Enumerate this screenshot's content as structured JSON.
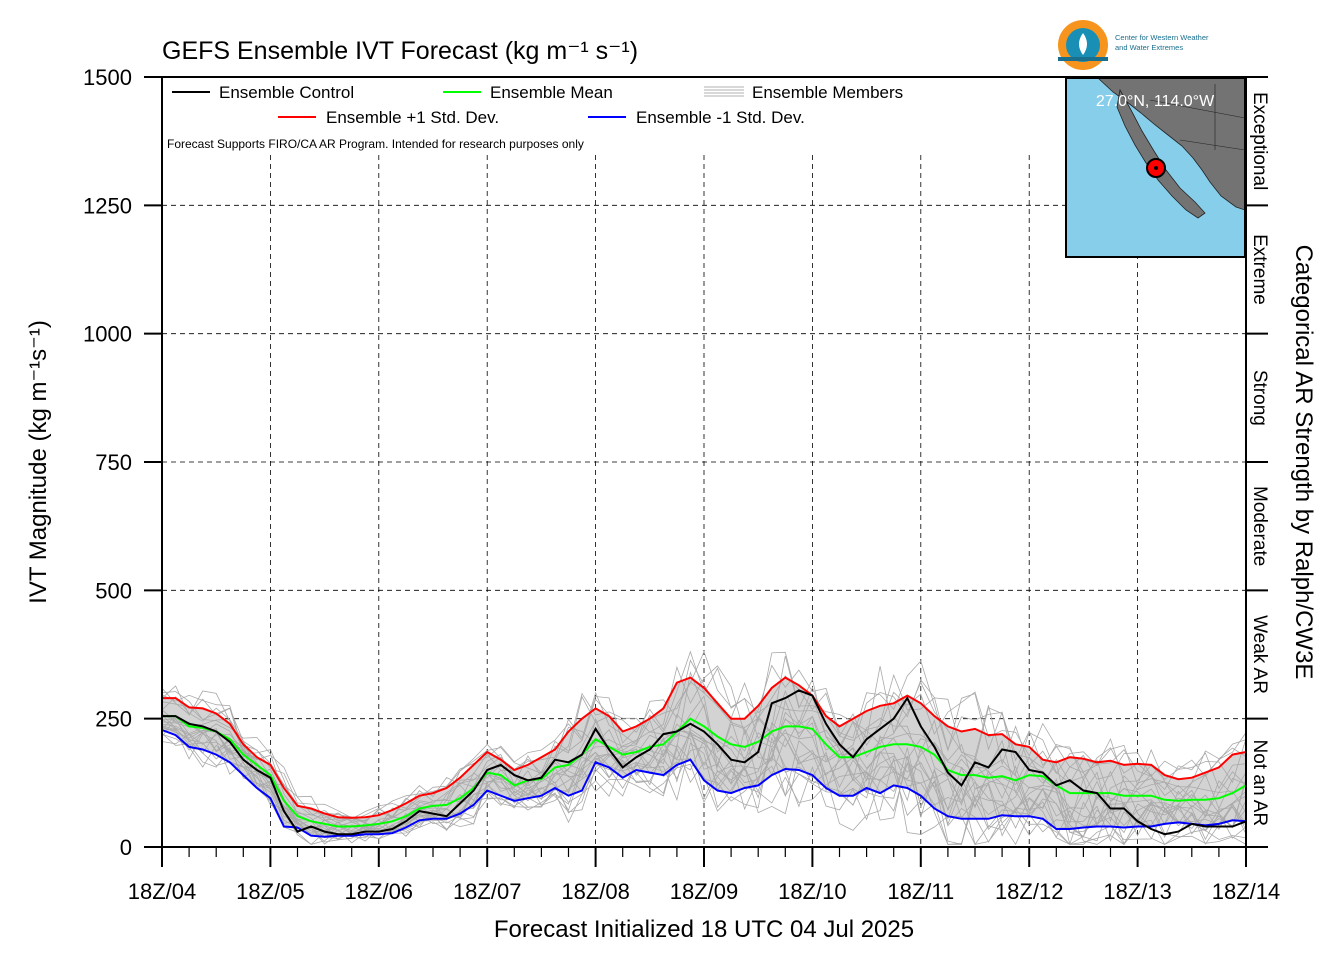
{
  "chart_data": {
    "type": "line",
    "title": "GEFS Ensemble IVT Forecast (kg m⁻¹ s⁻¹)",
    "xlabel": "Forecast Initialized 18 UTC 04 Jul 2025",
    "ylabel": "IVT Magnitude (kg m⁻¹s⁻¹)",
    "right_axis_label": "Categorical AR Strength by Ralph/CW3E",
    "ylim": [
      0,
      1500
    ],
    "xlim": [
      0,
      10
    ],
    "y_ticks": [
      0,
      250,
      500,
      750,
      1000,
      1250,
      1500
    ],
    "x_tick_labels": [
      "18Z/04",
      "18Z/05",
      "18Z/06",
      "18Z/07",
      "18Z/08",
      "18Z/09",
      "18Z/10",
      "18Z/11",
      "18Z/12",
      "18Z/13",
      "18Z/14"
    ],
    "x_unit": "days after 18Z/04",
    "categories_right": [
      {
        "label": "Not an AR",
        "from": 0,
        "to": 250
      },
      {
        "label": "Weak AR",
        "from": 250,
        "to": 500
      },
      {
        "label": "Moderate",
        "from": 500,
        "to": 750
      },
      {
        "label": "Strong",
        "from": 750,
        "to": 1000
      },
      {
        "label": "Extreme",
        "from": 1000,
        "to": 1250
      },
      {
        "label": "Exceptional",
        "from": 1250,
        "to": 1500
      }
    ],
    "note": "Forecast Supports FIRO/CA AR Program. Intended for research purposes only",
    "grid": true,
    "legend_position": "top-left",
    "legend": [
      "Ensemble Control",
      "Ensemble Mean",
      "Ensemble Members",
      "Ensemble +1 Std. Dev.",
      "Ensemble -1 Std. Dev."
    ],
    "series": [
      {
        "name": "Ensemble Control",
        "color": "#000000",
        "x": [
          0,
          0.125,
          0.25,
          0.375,
          0.5,
          0.625,
          0.75,
          0.875,
          1,
          1.125,
          1.25,
          1.375,
          1.5,
          1.625,
          1.75,
          1.875,
          2,
          2.125,
          2.25,
          2.375,
          2.5,
          2.625,
          2.75,
          2.875,
          3,
          3.125,
          3.25,
          3.375,
          3.5,
          3.625,
          3.75,
          3.875,
          4,
          4.125,
          4.25,
          4.375,
          4.5,
          4.625,
          4.75,
          4.875,
          5,
          5.125,
          5.25,
          5.375,
          5.5,
          5.625,
          5.75,
          5.875,
          6,
          6.125,
          6.25,
          6.375,
          6.5,
          6.625,
          6.75,
          6.875,
          7,
          7.125,
          7.25,
          7.375,
          7.5,
          7.625,
          7.75,
          7.875,
          8,
          8.125,
          8.25,
          8.375,
          8.5,
          8.625,
          8.75,
          8.875,
          9,
          9.125,
          9.25,
          9.375,
          9.5,
          9.625,
          9.75,
          9.875,
          10
        ],
        "values": [
          255,
          255,
          240,
          235,
          225,
          205,
          170,
          150,
          135,
          70,
          30,
          40,
          30,
          25,
          25,
          30,
          30,
          35,
          50,
          70,
          65,
          60,
          85,
          110,
          150,
          160,
          140,
          130,
          135,
          170,
          165,
          180,
          230,
          190,
          155,
          175,
          190,
          220,
          225,
          240,
          225,
          200,
          170,
          165,
          185,
          280,
          290,
          305,
          295,
          240,
          200,
          175,
          210,
          230,
          250,
          290,
          235,
          195,
          145,
          120,
          165,
          155,
          190,
          185,
          150,
          145,
          120,
          130,
          110,
          105,
          75,
          75,
          50,
          35,
          25,
          30,
          45,
          40,
          40,
          40,
          50
        ]
      },
      {
        "name": "Ensemble Mean",
        "color": "#00ff00",
        "x": [
          0,
          0.125,
          0.25,
          0.375,
          0.5,
          0.625,
          0.75,
          0.875,
          1,
          1.125,
          1.25,
          1.375,
          1.5,
          1.625,
          1.75,
          1.875,
          2,
          2.125,
          2.25,
          2.375,
          2.5,
          2.625,
          2.75,
          2.875,
          3,
          3.125,
          3.25,
          3.375,
          3.5,
          3.625,
          3.75,
          3.875,
          4,
          4.125,
          4.25,
          4.375,
          4.5,
          4.625,
          4.75,
          4.875,
          5,
          5.125,
          5.25,
          5.375,
          5.5,
          5.625,
          5.75,
          5.875,
          6,
          6.125,
          6.25,
          6.375,
          6.5,
          6.625,
          6.75,
          6.875,
          7,
          7.125,
          7.25,
          7.375,
          7.5,
          7.625,
          7.75,
          7.875,
          8,
          8.125,
          8.25,
          8.375,
          8.5,
          8.625,
          8.75,
          8.875,
          9,
          9.125,
          9.25,
          9.375,
          9.5,
          9.625,
          9.75,
          9.875,
          10
        ],
        "values": [
          255,
          255,
          235,
          232,
          225,
          210,
          180,
          160,
          140,
          90,
          60,
          50,
          45,
          40,
          40,
          42,
          45,
          50,
          60,
          75,
          80,
          82,
          95,
          115,
          145,
          140,
          120,
          130,
          132,
          155,
          160,
          180,
          210,
          195,
          180,
          185,
          195,
          200,
          225,
          250,
          235,
          215,
          200,
          195,
          205,
          225,
          235,
          235,
          230,
          200,
          175,
          175,
          185,
          195,
          200,
          200,
          195,
          180,
          150,
          140,
          140,
          135,
          138,
          130,
          140,
          138,
          120,
          105,
          105,
          105,
          105,
          100,
          100,
          100,
          92,
          90,
          92,
          92,
          95,
          105,
          120
        ]
      },
      {
        "name": "Ensemble +1 Std. Dev.",
        "color": "#ff0000",
        "x": [
          0,
          0.125,
          0.25,
          0.375,
          0.5,
          0.625,
          0.75,
          0.875,
          1,
          1.125,
          1.25,
          1.375,
          1.5,
          1.625,
          1.75,
          1.875,
          2,
          2.125,
          2.25,
          2.375,
          2.5,
          2.625,
          2.75,
          2.875,
          3,
          3.125,
          3.25,
          3.375,
          3.5,
          3.625,
          3.75,
          3.875,
          4,
          4.125,
          4.25,
          4.375,
          4.5,
          4.625,
          4.75,
          4.875,
          5,
          5.125,
          5.25,
          5.375,
          5.5,
          5.625,
          5.75,
          5.875,
          6,
          6.125,
          6.25,
          6.375,
          6.5,
          6.625,
          6.75,
          6.875,
          7,
          7.125,
          7.25,
          7.375,
          7.5,
          7.625,
          7.75,
          7.875,
          8,
          8.125,
          8.25,
          8.375,
          8.5,
          8.625,
          8.75,
          8.875,
          9,
          9.125,
          9.25,
          9.375,
          9.5,
          9.625,
          9.75,
          9.875,
          10
        ],
        "values": [
          290,
          290,
          272,
          270,
          260,
          240,
          200,
          175,
          160,
          115,
          80,
          75,
          65,
          58,
          57,
          58,
          62,
          72,
          85,
          100,
          105,
          115,
          135,
          160,
          185,
          170,
          150,
          160,
          175,
          190,
          225,
          250,
          270,
          255,
          225,
          235,
          250,
          270,
          320,
          330,
          310,
          280,
          250,
          250,
          275,
          310,
          330,
          315,
          295,
          255,
          235,
          250,
          265,
          275,
          280,
          295,
          280,
          255,
          235,
          225,
          230,
          218,
          220,
          200,
          195,
          170,
          165,
          175,
          172,
          165,
          168,
          160,
          162,
          160,
          140,
          132,
          135,
          145,
          155,
          180,
          185
        ]
      },
      {
        "name": "Ensemble -1 Std. Dev.",
        "color": "#0000ff",
        "x": [
          0,
          0.125,
          0.25,
          0.375,
          0.5,
          0.625,
          0.75,
          0.875,
          1,
          1.125,
          1.25,
          1.375,
          1.5,
          1.625,
          1.75,
          1.875,
          2,
          2.125,
          2.25,
          2.375,
          2.5,
          2.625,
          2.75,
          2.875,
          3,
          3.125,
          3.25,
          3.375,
          3.5,
          3.625,
          3.75,
          3.875,
          4,
          4.125,
          4.25,
          4.375,
          4.5,
          4.625,
          4.75,
          4.875,
          5,
          5.125,
          5.25,
          5.375,
          5.5,
          5.625,
          5.75,
          5.875,
          6,
          6.125,
          6.25,
          6.375,
          6.5,
          6.625,
          6.75,
          6.875,
          7,
          7.125,
          7.25,
          7.375,
          7.5,
          7.625,
          7.75,
          7.875,
          8,
          8.125,
          8.25,
          8.375,
          8.5,
          8.625,
          8.75,
          8.875,
          9,
          9.125,
          9.25,
          9.375,
          9.5,
          9.625,
          9.75,
          9.875,
          10
        ],
        "values": [
          228,
          218,
          195,
          190,
          180,
          165,
          140,
          115,
          95,
          40,
          38,
          22,
          20,
          22,
          22,
          25,
          25,
          27,
          38,
          52,
          55,
          55,
          65,
          82,
          110,
          100,
          90,
          95,
          100,
          115,
          100,
          110,
          165,
          155,
          135,
          150,
          145,
          140,
          160,
          170,
          130,
          110,
          105,
          115,
          120,
          140,
          152,
          150,
          140,
          115,
          100,
          100,
          115,
          105,
          120,
          115,
          100,
          75,
          60,
          55,
          55,
          55,
          62,
          60,
          60,
          55,
          35,
          35,
          38,
          40,
          40,
          38,
          40,
          40,
          45,
          48,
          45,
          42,
          45,
          52,
          50
        ]
      }
    ]
  },
  "map_inset": {
    "location_label": "27.0°N, 114.0°W",
    "ocean_color": "#87ceeb",
    "land_color": "#737373",
    "marker_color": "#ff0000"
  },
  "logo": {
    "line1": "Center for Western Weather",
    "line2": "and Water Extremes"
  }
}
